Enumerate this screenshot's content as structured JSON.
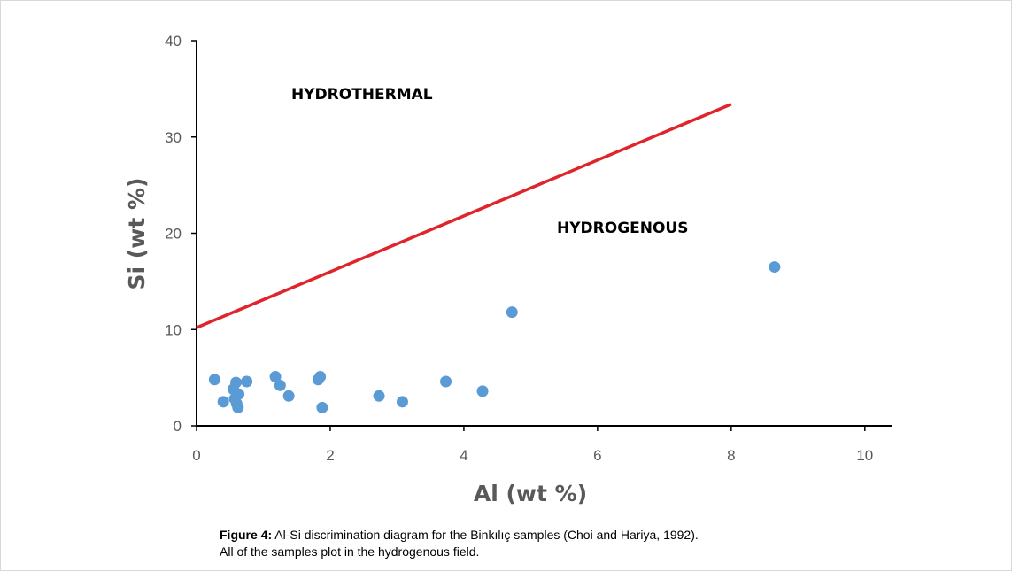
{
  "chart_data": {
    "type": "scatter",
    "xlabel": "Al (wt %)",
    "ylabel": "Si (wt %)",
    "xlim": [
      0,
      10.4
    ],
    "ylim": [
      0,
      40
    ],
    "xticks": [
      "0",
      "2",
      "4",
      "6",
      "8",
      "10"
    ],
    "yticks": [
      "0",
      "10",
      "20",
      "30",
      "40"
    ],
    "grid": false,
    "marker_color": "#5b9bd5",
    "line_color": "#e0242b",
    "discrimination_line": {
      "x": [
        0.0,
        8.0
      ],
      "y": [
        10.2,
        33.4
      ]
    },
    "region_labels": [
      "HYDROTHERMAL",
      "HYDROGENOUS"
    ],
    "series": [
      {
        "x": [
          0.27,
          0.4,
          0.55,
          0.57,
          0.59,
          0.6,
          0.62,
          0.63,
          0.75,
          1.18,
          1.25,
          1.38,
          1.82,
          1.85,
          1.88,
          2.73,
          3.08,
          3.73,
          4.28,
          4.72,
          8.65
        ],
        "y": [
          4.8,
          2.5,
          3.8,
          2.8,
          4.5,
          2.3,
          1.9,
          3.3,
          4.6,
          5.1,
          4.2,
          3.1,
          4.8,
          5.1,
          1.9,
          3.1,
          2.5,
          4.6,
          3.6,
          11.8,
          16.5
        ]
      }
    ]
  },
  "caption": {
    "label": "Figure 4:",
    "line1": " Al-Si discrimination diagram for the Binkılıç samples (Choi and Hariya, 1992).",
    "line2": "All of the samples plot in the hydrogenous field."
  }
}
